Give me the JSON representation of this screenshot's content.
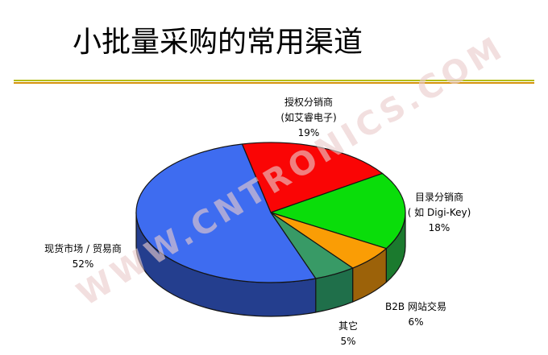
{
  "page": {
    "background": "#ffffff"
  },
  "title": "小批量采购的常用渠道",
  "divider": {
    "top_color": "#b3bd14",
    "bottom_color": "#d49208"
  },
  "watermark": "WWW.CNTRONICS.COM",
  "chart_data": {
    "type": "pie",
    "projection": "3d",
    "start_angle_deg": 102.3,
    "direction": "clockwise",
    "unit": "%",
    "slices": [
      {
        "name": "授权分销商(如艾睿电子)",
        "value": 19,
        "top_color": "#fa0505",
        "side_color": "#8f0f0f",
        "label_lines": [
          "授权分销商",
          "(如艾睿电子)",
          "19%"
        ]
      },
      {
        "name": "目录分销商( 如 Digi-Key)",
        "value": 18,
        "top_color": "#0add0a",
        "side_color": "#1b7a2e",
        "label_lines": [
          "目录分销商",
          "( 如 Digi-Key)",
          "18%"
        ]
      },
      {
        "name": "B2B 网站交易",
        "value": 6,
        "top_color": "#fa9d05",
        "side_color": "#9c6209",
        "label_lines": [
          "B2B 网站交易",
          "6%"
        ]
      },
      {
        "name": "其它",
        "value": 5,
        "top_color": "#389a66",
        "side_color": "#1f6f4a",
        "label_lines": [
          "其它",
          "5%"
        ]
      },
      {
        "name": "现货市场 / 贸易商",
        "value": 52,
        "top_color": "#3e6cf0",
        "side_color": "#243e8e",
        "label_lines": [
          "现货市场 / 贸易商",
          "52%"
        ]
      }
    ]
  }
}
